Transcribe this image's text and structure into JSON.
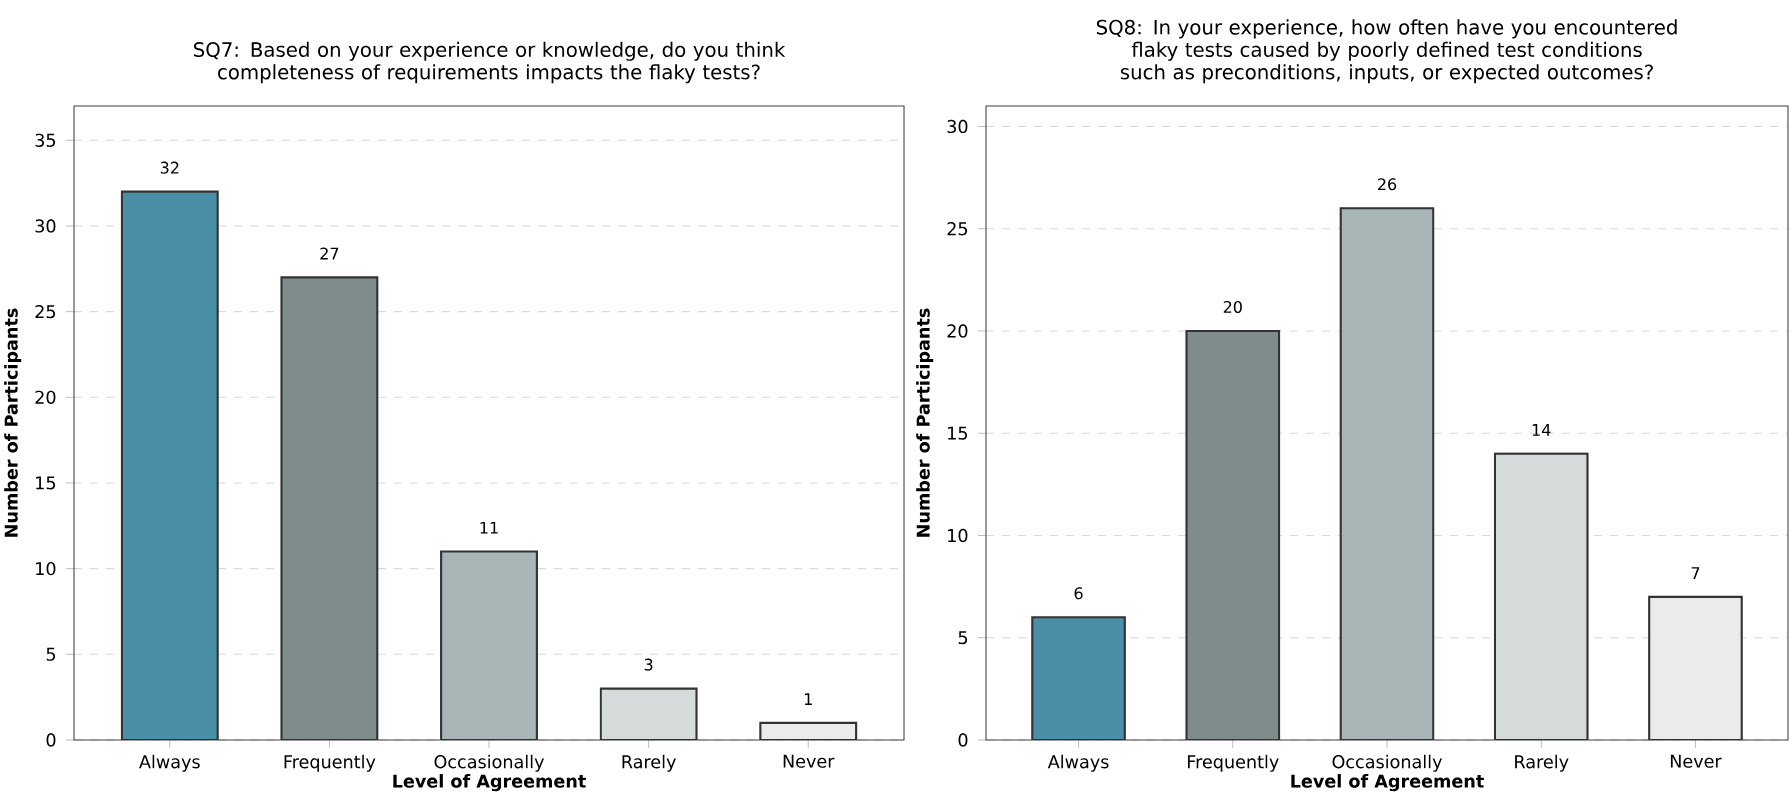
{
  "chart_data": [
    {
      "type": "bar",
      "title": "SQ7: Based on your experience or knowledge, do you think completeness of requirements impacts the flaky tests?",
      "xlabel": "Level of Agreement",
      "ylabel": "Number of Participants",
      "categories": [
        "Always",
        "Frequently",
        "Occasionally",
        "Rarely",
        "Never"
      ],
      "values": [
        32,
        27,
        11,
        3,
        1
      ],
      "colors": [
        "#4a8fa6",
        "#7f8c8c",
        "#a9b6b7",
        "#d5dbdb",
        "#ebebeb"
      ],
      "ylim": [
        0,
        37
      ],
      "yticks": [
        0,
        5,
        10,
        15,
        20,
        25,
        30,
        35
      ],
      "grid": "y",
      "data_labels": true
    },
    {
      "type": "bar",
      "title": "SQ8: In your experience, how often have you encountered flaky tests caused by poorly defined test conditions such as preconditions, inputs, or expected outcomes?",
      "xlabel": "Level of Agreement",
      "ylabel": "Number of Participants",
      "categories": [
        "Always",
        "Frequently",
        "Occasionally",
        "Rarely",
        "Never"
      ],
      "values": [
        6,
        20,
        26,
        14,
        7
      ],
      "colors": [
        "#4a8fa6",
        "#7f8c8c",
        "#a9b6b7",
        "#d5dbdb",
        "#ebebeb"
      ],
      "ylim": [
        0,
        31
      ],
      "yticks": [
        0,
        5,
        10,
        15,
        20,
        25,
        30
      ],
      "grid": "y",
      "data_labels": true
    }
  ]
}
